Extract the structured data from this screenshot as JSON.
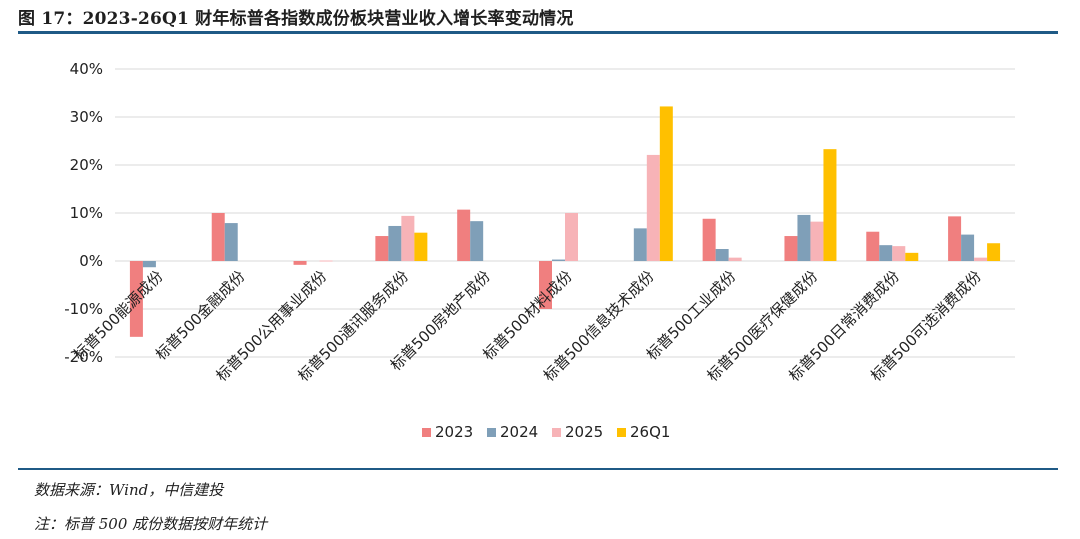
{
  "figure": {
    "title": "图 17：2023-26Q1 财年标普各指数成份板块营业收入增长率变动情况",
    "source": "数据来源：Wind，中信建投",
    "note": "注：标普 500 成份数据按财年统计"
  },
  "colors": {
    "rule": "#1f5a86",
    "grid": "#d9d9d9",
    "s2023": "#f07f7f",
    "s2024": "#7f9fb8",
    "s2025": "#f7b3b7",
    "s26Q1": "#ffc000"
  },
  "chart_data": {
    "type": "bar",
    "title": "",
    "xlabel": "",
    "ylabel": "",
    "ylim": [
      -0.2,
      0.4
    ],
    "yticks": [
      -0.2,
      -0.1,
      0,
      0.1,
      0.2,
      0.3,
      0.4
    ],
    "ytick_labels": [
      "-20%",
      "-10%",
      "0%",
      "10%",
      "20%",
      "30%",
      "40%"
    ],
    "grid": true,
    "legend": "bottom",
    "categories": [
      "标普500能源成份",
      "标普500金融成份",
      "标普500公用事业成份",
      "标普500通讯服务成份",
      "标普500房地产成份",
      "标普500材料成份",
      "标普500信息技术成份",
      "标普500工业成份",
      "标普500医疗保健成份",
      "标普500日常消费成份",
      "标普500可选消费成份"
    ],
    "series": [
      {
        "name": "2023",
        "color": "#f07f7f",
        "values": [
          -0.158,
          0.1,
          -0.008,
          0.052,
          0.107,
          -0.1,
          null,
          0.088,
          0.052,
          0.061,
          0.093
        ]
      },
      {
        "name": "2024",
        "color": "#7f9fb8",
        "values": [
          -0.013,
          0.079,
          null,
          0.073,
          0.083,
          0.003,
          0.068,
          0.025,
          0.096,
          0.033,
          0.055
        ]
      },
      {
        "name": "2025",
        "color": "#f7b3b7",
        "values": [
          null,
          null,
          0.001,
          0.094,
          null,
          0.1,
          0.221,
          0.007,
          0.082,
          0.031,
          0.007
        ]
      },
      {
        "name": "26Q1",
        "color": "#ffc000",
        "values": [
          null,
          null,
          null,
          0.059,
          null,
          null,
          0.322,
          null,
          0.233,
          0.017,
          0.037
        ]
      }
    ]
  }
}
